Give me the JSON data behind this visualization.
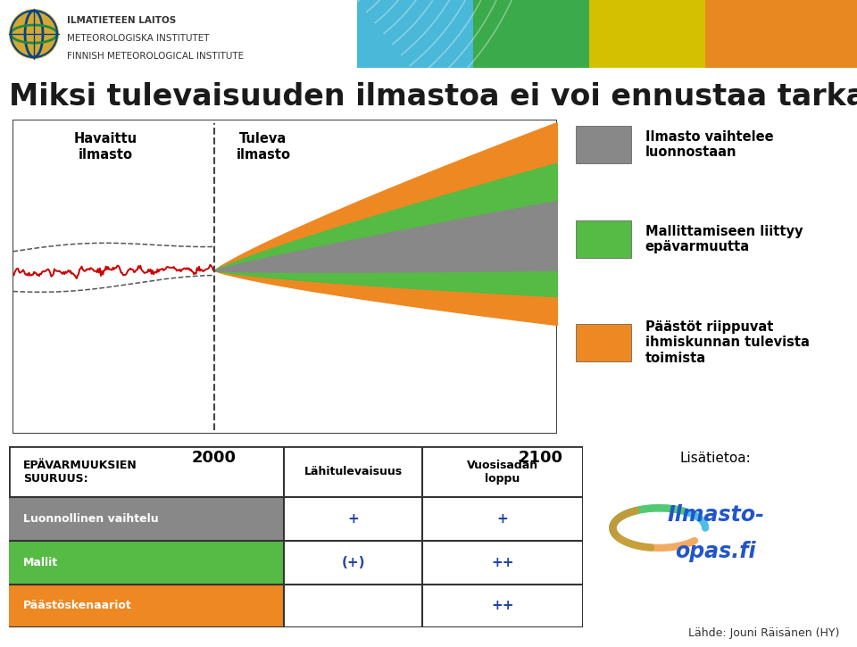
{
  "title": "Miksi tulevaisuuden ilmastoa ei voi ennustaa tarkasti?",
  "bg_color": "#ffffff",
  "title_fontsize": 24,
  "title_color": "#1a1a1a",
  "header": {
    "colors": [
      "#4ab8d8",
      "#3aaa4a",
      "#d4c000",
      "#e88820"
    ],
    "arc_color": "#ffffff",
    "arc_alpha": 0.35
  },
  "chart": {
    "label_havaittu": "Havaittu\nilmasto",
    "label_tuleva": "Tuleva\nilmasto",
    "label_2000": "2000",
    "label_2100": "2100",
    "color_gray": "#888888",
    "color_green": "#55bb44",
    "color_orange": "#ee8822",
    "color_red_line": "#cc0000",
    "color_dashed": "#555555",
    "color_border": "#444444"
  },
  "legend": [
    {
      "color": "#888888",
      "text": "Ilmasto vaihtelee\nluonnostaan"
    },
    {
      "color": "#55bb44",
      "text": "Mallittamiseen liittyy\nepävarmuutta"
    },
    {
      "color": "#ee8822",
      "text": "Päästöt riippuvat\nihmiskunnan tulevista\ntoimista"
    }
  ],
  "table": {
    "header_col1": "EPÄVARMUUKSIEN\nSUURUUS:",
    "header_col2": "Lähitulevaisuus",
    "header_col3": "Vuosisadan\nloppu",
    "rows": [
      {
        "label": "Luonnollinen vaihtelu",
        "bg": "#888888",
        "text_color": "#ffffff",
        "col2": "+",
        "col3": "+"
      },
      {
        "label": "Mallit",
        "bg": "#55bb44",
        "text_color": "#ffffff",
        "col2": "(+)",
        "col3": "++"
      },
      {
        "label": "Päästöskenaariot",
        "bg": "#ee8822",
        "text_color": "#ffffff",
        "col2": "",
        "col3": "++"
      }
    ],
    "border_color": "#333333",
    "header_text_color": "#000000",
    "cell_text_color": "#2244aa"
  },
  "footer_text": "Lähde: Jouni Räisänen (HY)",
  "lisatietoa_text": "Lisätietoa:",
  "ilmasto_opas_text": "Ilmasto-\nopas.fi",
  "ilmasto_opas_color": "#2255cc"
}
